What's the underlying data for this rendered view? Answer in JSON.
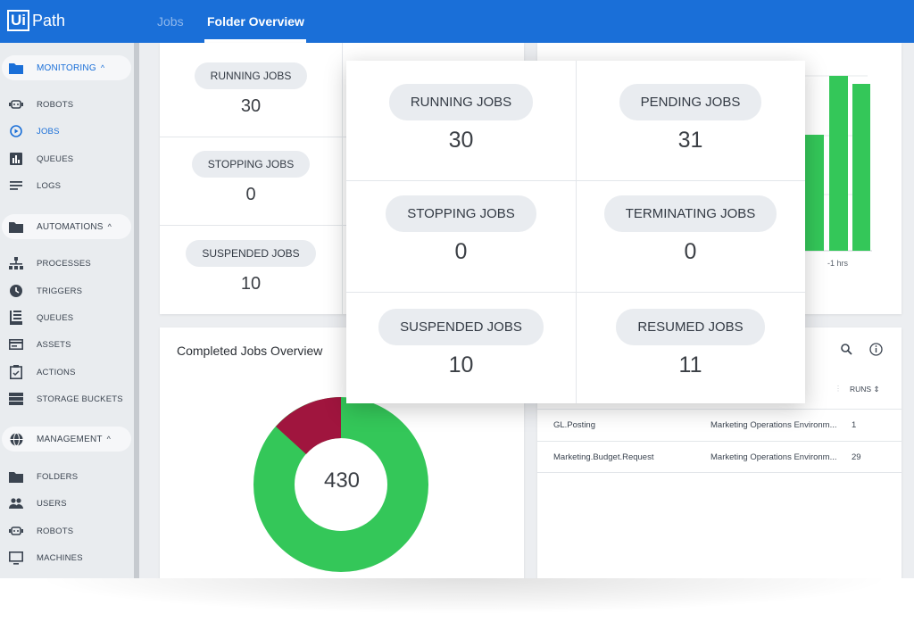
{
  "header": {
    "logo_ui": "Ui",
    "logo_path": "Path",
    "tabs": [
      {
        "label": "Jobs"
      },
      {
        "label": "Folder Overview"
      }
    ]
  },
  "sidebar": {
    "monitoring": {
      "label": "MONITORING",
      "chevron": "^"
    },
    "monitoring_items": [
      {
        "label": "ROBOTS",
        "icon": "robot-icon"
      },
      {
        "label": "JOBS",
        "icon": "play-circle-icon"
      },
      {
        "label": "QUEUES",
        "icon": "bar-chart-icon"
      },
      {
        "label": "LOGS",
        "icon": "lines-icon"
      }
    ],
    "automations": {
      "label": "AUTOMATIONS",
      "chevron": "^"
    },
    "automation_items": [
      {
        "label": "PROCESSES",
        "icon": "hierarchy-icon"
      },
      {
        "label": "TRIGGERS",
        "icon": "clock-icon"
      },
      {
        "label": "QUEUES",
        "icon": "queue-icon"
      },
      {
        "label": "ASSETS",
        "icon": "assets-icon"
      },
      {
        "label": "ACTIONS",
        "icon": "clipboard-icon"
      },
      {
        "label": "STORAGE BUCKETS",
        "icon": "storage-icon"
      }
    ],
    "management": {
      "label": "MANAGEMENT",
      "chevron": "^"
    },
    "management_items": [
      {
        "label": "FOLDERS",
        "icon": "folder-icon"
      },
      {
        "label": "USERS",
        "icon": "users-icon"
      },
      {
        "label": "ROBOTS",
        "icon": "robot-icon"
      },
      {
        "label": "MACHINES",
        "icon": "monitor-icon"
      }
    ]
  },
  "jobs_card": {
    "running": {
      "label": "RUNNING JOBS",
      "value": "30"
    },
    "stopping": {
      "label": "STOPPING JOBS",
      "value": "0"
    },
    "suspended": {
      "label": "SUSPENDED JOBS",
      "value": "10"
    }
  },
  "popup": {
    "cells": [
      {
        "label": "RUNNING JOBS",
        "value": "30"
      },
      {
        "label": "PENDING JOBS",
        "value": "31"
      },
      {
        "label": "STOPPING JOBS",
        "value": "0"
      },
      {
        "label": "TERMINATING JOBS",
        "value": "0"
      },
      {
        "label": "SUSPENDED JOBS",
        "value": "10"
      },
      {
        "label": "RESUMED JOBS",
        "value": "11"
      }
    ]
  },
  "bar_chart": {
    "x_tick": "-1 hrs",
    "bar_color": "#34c759"
  },
  "completed": {
    "title": "Completed Jobs Overview",
    "total": "430",
    "colors": {
      "success": "#34c759",
      "faulted": "#a0153e"
    }
  },
  "processes_table": {
    "runs_header": "RUNS",
    "rows": [
      {
        "name": "GL.Posting",
        "environment": "Marketing Operations Environm...",
        "runs": "1"
      },
      {
        "name": "Marketing.Budget.Request",
        "environment": "Marketing Operations Environm...",
        "runs": "29"
      }
    ]
  },
  "colors": {
    "brand": "#1a6fd8",
    "sidebar_bg": "#e9ecef"
  }
}
